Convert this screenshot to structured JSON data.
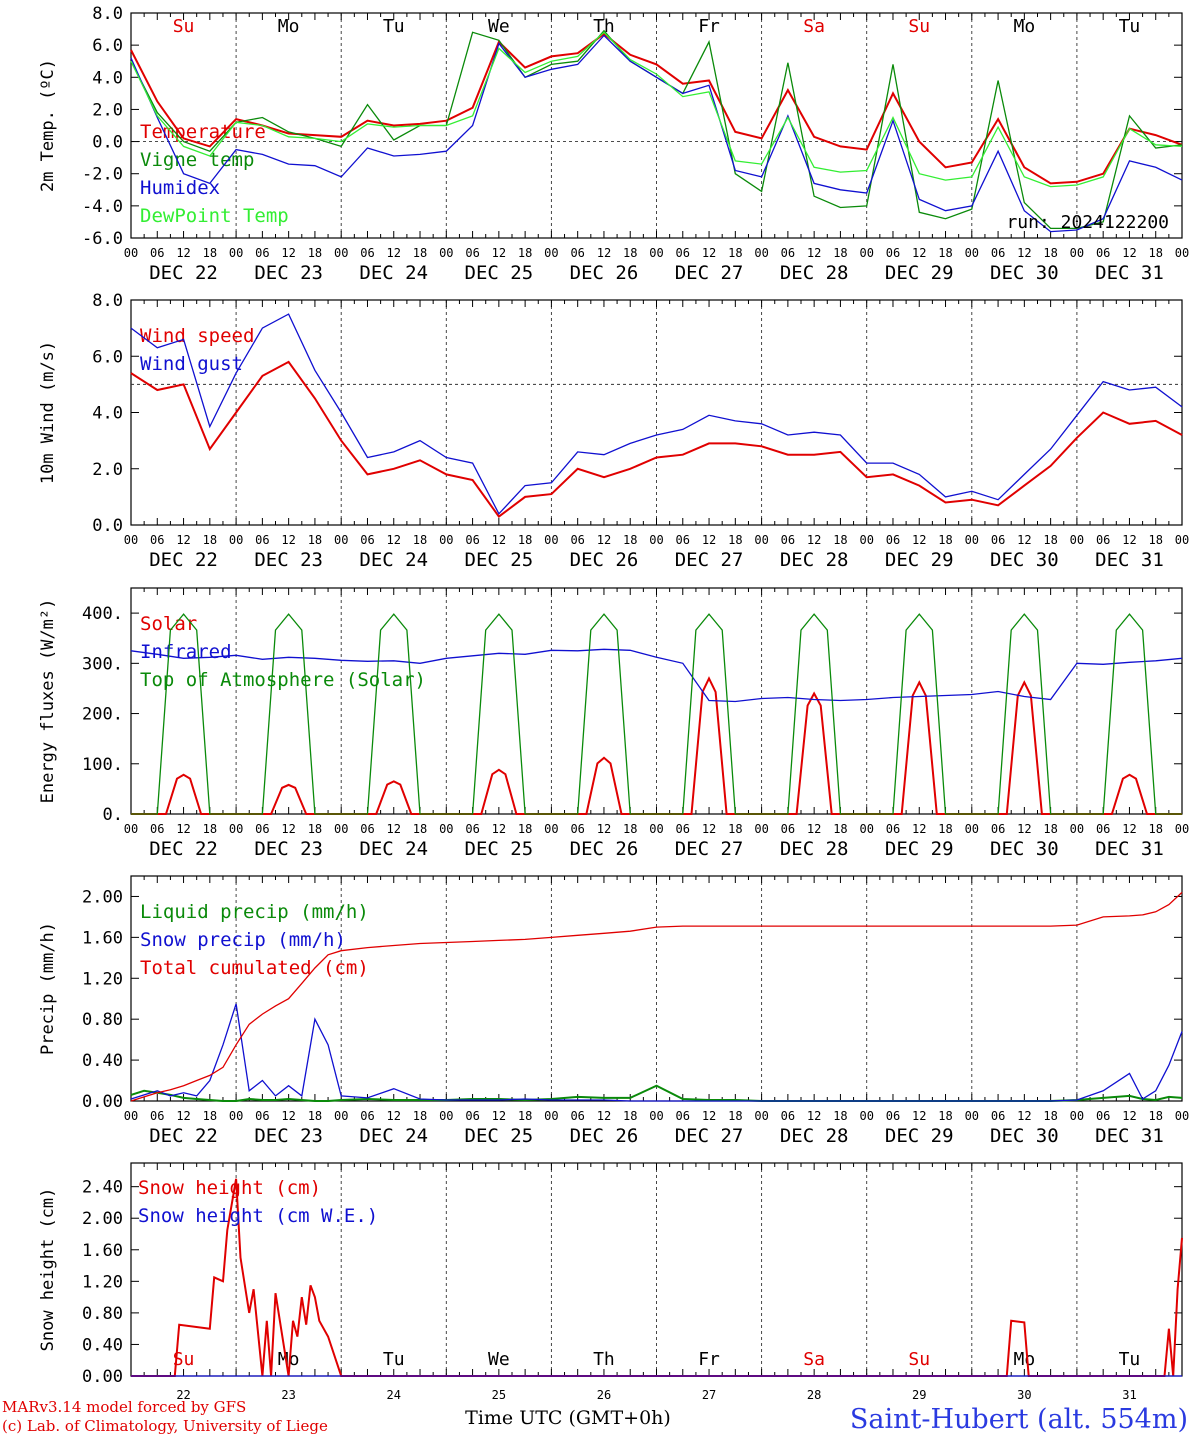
{
  "days": [
    "DEC 22",
    "DEC 23",
    "DEC 24",
    "DEC 25",
    "DEC 26",
    "DEC 27",
    "DEC 28",
    "DEC 29",
    "DEC 30",
    "DEC 31"
  ],
  "hour_ticks": [
    "00",
    "06",
    "12",
    "18"
  ],
  "last_hour_tick": "00",
  "weekdays": [
    "Su",
    "Mo",
    "Tu",
    "We",
    "Th",
    "Fr",
    "Sa",
    "Su",
    "Mo",
    "Tu"
  ],
  "weekday_colors": [
    "#e00000",
    "#000000",
    "#000000",
    "#000000",
    "#000000",
    "#000000",
    "#e00000",
    "#e00000",
    "#000000",
    "#000000"
  ],
  "bottom_day_numbers": [
    "22",
    "23",
    "24",
    "25",
    "26",
    "27",
    "28",
    "29",
    "30",
    "31"
  ],
  "run_label": "run: 2024122200",
  "x_axis_title": "Time UTC (GMT+0h)",
  "footer": {
    "credit_line1": "MARv3.14 model forced by GFS",
    "credit_line2": "(c) Lab. of Climatology, University of Liege",
    "station": "Saint-Hubert (alt. 554m)"
  },
  "chart_data": [
    {
      "type": "line",
      "ylabel": "2m Temp. (ºC)",
      "ylim": [
        -6,
        8
      ],
      "yticks": [
        "8.0",
        "6.0",
        "4.0",
        "2.0",
        "0.0",
        "-2.0",
        "-4.0",
        "-6.0"
      ],
      "ref_line": 0,
      "x_hours": [
        0,
        6,
        12,
        18,
        24,
        30,
        36,
        42,
        48,
        54,
        60,
        66,
        72,
        78,
        84,
        90,
        96,
        102,
        108,
        114,
        120,
        126,
        132,
        138,
        144,
        150,
        156,
        162,
        168,
        174,
        180,
        186,
        192,
        198,
        204,
        210,
        216,
        222,
        228,
        234,
        240
      ],
      "series": [
        {
          "name": "Temperature",
          "color": "#e00000",
          "values": [
            5.7,
            2.5,
            0.2,
            -0.3,
            1.4,
            1.0,
            0.5,
            0.4,
            0.3,
            1.3,
            1.0,
            1.1,
            1.3,
            2.1,
            6.2,
            4.6,
            5.3,
            5.5,
            6.7,
            5.4,
            4.8,
            3.6,
            3.8,
            0.6,
            0.2,
            3.2,
            0.3,
            -0.3,
            -0.5,
            3.0,
            0.0,
            -1.6,
            -1.3,
            1.4,
            -1.6,
            -2.6,
            -2.5,
            -2.0,
            0.8,
            0.4,
            -0.2
          ]
        },
        {
          "name": "Vigne temp",
          "color": "#0a8a0a",
          "values": [
            5.0,
            1.8,
            0.0,
            -0.6,
            1.2,
            1.5,
            0.6,
            0.2,
            -0.3,
            2.3,
            0.1,
            1.0,
            1.0,
            6.8,
            6.3,
            4.0,
            4.8,
            5.0,
            6.9,
            5.0,
            4.0,
            3.0,
            6.2,
            -2.0,
            -3.1,
            4.9,
            -3.4,
            -4.1,
            -4.0,
            4.8,
            -4.4,
            -4.8,
            -4.2,
            3.8,
            -3.8,
            -5.4,
            -5.4,
            -5.0,
            1.6,
            -0.4,
            -0.2
          ]
        },
        {
          "name": "Humidex",
          "color": "#1010d0",
          "values": [
            5.2,
            1.5,
            -2.0,
            -2.6,
            -0.5,
            -0.8,
            -1.4,
            -1.5,
            -2.2,
            -0.4,
            -0.9,
            -0.8,
            -0.6,
            1.0,
            6.1,
            4.0,
            4.5,
            4.8,
            6.6,
            5.0,
            4.0,
            3.0,
            3.5,
            -1.8,
            -2.2,
            1.6,
            -2.6,
            -3.0,
            -3.2,
            1.3,
            -3.6,
            -4.3,
            -4.0,
            -0.6,
            -4.3,
            -5.6,
            -5.5,
            -4.8,
            -1.2,
            -1.6,
            -2.4
          ]
        },
        {
          "name": "DewPoint Temp",
          "color": "#33ee33",
          "values": [
            5.0,
            1.6,
            -0.3,
            -0.9,
            1.2,
            1.0,
            0.3,
            0.2,
            0.0,
            1.1,
            0.9,
            1.0,
            1.0,
            1.6,
            5.8,
            4.3,
            5.0,
            5.3,
            6.8,
            5.1,
            4.2,
            2.8,
            3.1,
            -1.2,
            -1.4,
            1.5,
            -1.6,
            -1.9,
            -1.8,
            1.5,
            -2.0,
            -2.4,
            -2.2,
            0.9,
            -2.2,
            -2.8,
            -2.7,
            -2.2,
            0.8,
            -0.2,
            -0.3
          ]
        }
      ]
    },
    {
      "type": "line",
      "ylabel": "10m Wind (m/s)",
      "ylim": [
        0,
        8
      ],
      "yticks": [
        "8.0",
        "6.0",
        "4.0",
        "2.0",
        "0.0"
      ],
      "ref_line": 5,
      "x_hours": [
        0,
        6,
        12,
        18,
        24,
        30,
        36,
        42,
        48,
        54,
        60,
        66,
        72,
        78,
        84,
        90,
        96,
        102,
        108,
        114,
        120,
        126,
        132,
        138,
        144,
        150,
        156,
        162,
        168,
        174,
        180,
        186,
        192,
        198,
        204,
        210,
        216,
        222,
        228,
        234,
        240
      ],
      "series": [
        {
          "name": "Wind speed",
          "color": "#e00000",
          "values": [
            5.4,
            4.8,
            5.0,
            2.7,
            4.0,
            5.3,
            5.8,
            4.5,
            3.0,
            1.8,
            2.0,
            2.3,
            1.8,
            1.6,
            0.3,
            1.0,
            1.1,
            2.0,
            1.7,
            2.0,
            2.4,
            2.5,
            2.9,
            2.9,
            2.8,
            2.5,
            2.5,
            2.6,
            1.7,
            1.8,
            1.4,
            0.8,
            0.9,
            0.7,
            1.4,
            2.1,
            3.1,
            4.0,
            3.6,
            3.7,
            3.2
          ]
        },
        {
          "name": "Wind gust",
          "color": "#1010d0",
          "values": [
            7.0,
            6.3,
            6.6,
            3.5,
            5.4,
            7.0,
            7.5,
            5.5,
            4.0,
            2.4,
            2.6,
            3.0,
            2.4,
            2.2,
            0.4,
            1.4,
            1.5,
            2.6,
            2.5,
            2.9,
            3.2,
            3.4,
            3.9,
            3.7,
            3.6,
            3.2,
            3.3,
            3.2,
            2.2,
            2.2,
            1.8,
            1.0,
            1.2,
            0.9,
            1.8,
            2.7,
            3.9,
            5.1,
            4.8,
            4.9,
            4.2
          ]
        }
      ]
    },
    {
      "type": "line",
      "ylabel": "Energy fluxes (W/m²)",
      "ylim": [
        0,
        450
      ],
      "yticks": [
        "400.",
        "300.",
        "200.",
        "100.",
        "0."
      ],
      "ytick_values": [
        400,
        300,
        200,
        100,
        0
      ],
      "ref_line": null,
      "series": [
        {
          "name": "Solar",
          "color": "#e00000",
          "daily_peaks": [
            78,
            58,
            65,
            88,
            112,
            270,
            240,
            262,
            262,
            78
          ]
        },
        {
          "name": "Infrared",
          "color": "#1010d0",
          "x_hours": [
            0,
            6,
            12,
            18,
            24,
            30,
            36,
            42,
            48,
            54,
            60,
            66,
            72,
            78,
            84,
            90,
            96,
            102,
            108,
            114,
            120,
            126,
            132,
            138,
            144,
            150,
            156,
            162,
            168,
            174,
            180,
            186,
            192,
            198,
            204,
            210,
            216,
            222,
            228,
            234,
            240
          ],
          "values": [
            325,
            318,
            310,
            312,
            316,
            308,
            312,
            310,
            306,
            304,
            305,
            300,
            310,
            315,
            320,
            318,
            326,
            325,
            328,
            326,
            312,
            300,
            226,
            224,
            230,
            232,
            228,
            226,
            228,
            232,
            234,
            236,
            238,
            244,
            234,
            228,
            300,
            298,
            302,
            305,
            310
          ]
        },
        {
          "name": "Top of Atmosphere (Solar)",
          "color": "#0a8a0a",
          "daily_peaks": [
            398,
            398,
            398,
            398,
            398,
            398,
            398,
            398,
            398,
            398
          ]
        }
      ]
    },
    {
      "type": "line",
      "ylabel": "Precip (mm/h)",
      "ylim": [
        0,
        2.2
      ],
      "yticks": [
        "2.00",
        "1.60",
        "1.20",
        "0.80",
        "0.40",
        "0.00"
      ],
      "ytick_values": [
        2.0,
        1.6,
        1.2,
        0.8,
        0.4,
        0.0
      ],
      "ref_line": null,
      "x_hours": [
        0,
        3,
        6,
        9,
        12,
        15,
        18,
        21,
        24,
        27,
        30,
        33,
        36,
        39,
        42,
        45,
        48,
        54,
        60,
        66,
        72,
        78,
        84,
        90,
        96,
        102,
        108,
        114,
        120,
        126,
        132,
        138,
        144,
        150,
        156,
        162,
        168,
        174,
        180,
        186,
        192,
        198,
        204,
        210,
        216,
        222,
        228,
        231,
        234,
        237,
        240
      ],
      "series": [
        {
          "name": "Liquid precip (mm/h)",
          "color": "#0a8a0a",
          "values": [
            0.06,
            0.1,
            0.08,
            0.06,
            0.03,
            0.02,
            0.01,
            0.0,
            0.0,
            0.02,
            0.01,
            0.01,
            0.02,
            0.01,
            0.0,
            0.0,
            0.01,
            0.02,
            0.01,
            0.01,
            0.01,
            0.02,
            0.02,
            0.01,
            0.02,
            0.04,
            0.03,
            0.03,
            0.15,
            0.02,
            0.01,
            0.01,
            0.0,
            0.0,
            0.0,
            0.0,
            0.0,
            0.0,
            0.0,
            0.0,
            0.0,
            0.0,
            0.0,
            0.0,
            0.01,
            0.03,
            0.05,
            0.02,
            0.01,
            0.04,
            0.03
          ]
        },
        {
          "name": "Snow precip (mm/h)",
          "color": "#1010d0",
          "values": [
            0.02,
            0.06,
            0.1,
            0.05,
            0.08,
            0.05,
            0.2,
            0.55,
            0.95,
            0.1,
            0.2,
            0.05,
            0.15,
            0.05,
            0.8,
            0.55,
            0.05,
            0.03,
            0.12,
            0.02,
            0.01,
            0.01,
            0.01,
            0.02,
            0.01,
            0.01,
            0.01,
            0.0,
            0.0,
            0.0,
            0.0,
            0.0,
            0.0,
            0.0,
            0.0,
            0.0,
            0.0,
            0.0,
            0.0,
            0.0,
            0.0,
            0.0,
            0.0,
            0.0,
            0.01,
            0.1,
            0.27,
            0.02,
            0.1,
            0.35,
            0.68
          ]
        },
        {
          "name": "Total cumulated (cm)",
          "color": "#e00000",
          "values": [
            0.0,
            0.04,
            0.08,
            0.11,
            0.15,
            0.2,
            0.25,
            0.33,
            0.55,
            0.75,
            0.85,
            0.93,
            1.0,
            1.15,
            1.3,
            1.43,
            1.47,
            1.5,
            1.52,
            1.54,
            1.55,
            1.56,
            1.57,
            1.58,
            1.6,
            1.62,
            1.64,
            1.66,
            1.7,
            1.71,
            1.71,
            1.71,
            1.71,
            1.71,
            1.71,
            1.71,
            1.71,
            1.71,
            1.71,
            1.71,
            1.71,
            1.71,
            1.71,
            1.71,
            1.72,
            1.8,
            1.81,
            1.82,
            1.85,
            1.92,
            2.04
          ]
        }
      ]
    },
    {
      "type": "line",
      "ylabel": "Snow height (cm)",
      "ylim": [
        0,
        2.7
      ],
      "yticks": [
        "2.40",
        "2.00",
        "1.60",
        "1.20",
        "0.80",
        "0.40",
        "0.00"
      ],
      "ytick_values": [
        2.4,
        2.0,
        1.6,
        1.2,
        0.8,
        0.4,
        0.0
      ],
      "ref_line": null,
      "series": [
        {
          "name": "Snow height (cm)",
          "color": "#e00000",
          "x_hours": [
            0,
            10,
            11,
            18,
            19,
            21,
            22,
            24,
            25,
            27,
            28,
            30,
            31,
            32,
            33,
            36,
            37,
            38,
            39,
            40,
            41,
            42,
            43,
            45,
            48,
            49,
            50,
            52,
            200,
            201,
            204,
            205,
            206,
            236,
            237,
            238,
            239,
            240
          ],
          "values": [
            0.0,
            0.0,
            0.65,
            0.6,
            1.25,
            1.2,
            1.85,
            2.5,
            1.5,
            0.8,
            1.1,
            0.0,
            0.7,
            0.0,
            1.05,
            0.0,
            0.7,
            0.5,
            1.0,
            0.65,
            1.15,
            1.0,
            0.7,
            0.5,
            0.0,
            0.0,
            0.0,
            0.0,
            0.0,
            0.7,
            0.68,
            0.0,
            0.0,
            0.0,
            0.6,
            0.0,
            1.1,
            1.75
          ]
        },
        {
          "name": "Snow height (cm W.E.)",
          "color": "#1010d0",
          "x_hours": [
            0,
            240
          ],
          "values": [
            0.0,
            0.0
          ]
        }
      ]
    }
  ]
}
